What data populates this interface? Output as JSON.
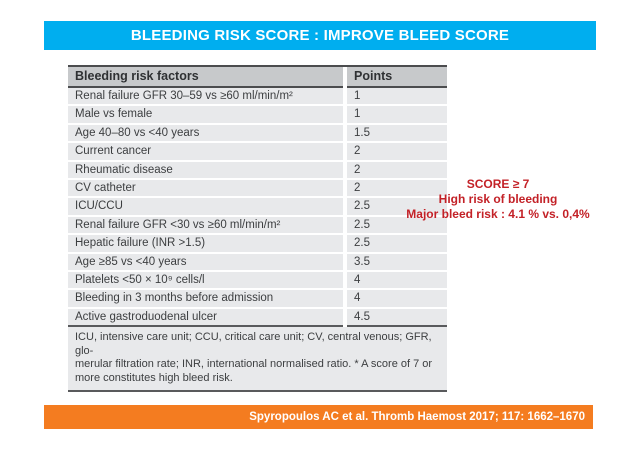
{
  "title": {
    "text": "BLEEDING RISK SCORE : IMPROVE BLEED SCORE"
  },
  "colors": {
    "accent-cyan": "#00AEEF",
    "accent-orange": "#F47C20",
    "accent-red": "#C32127",
    "table-header-bg": "#C7C9CB",
    "table-row-bg": "#E8E9EB"
  },
  "table": {
    "headers": [
      "Bleeding risk factors",
      "Points"
    ],
    "rows": [
      {
        "factor": "Renal failure GFR 30–59 vs ≥60 ml/min/m²",
        "points": "1"
      },
      {
        "factor": "Male vs female",
        "points": "1"
      },
      {
        "factor": "Age 40–80 vs <40 years",
        "points": "1.5"
      },
      {
        "factor": "Current cancer",
        "points": "2"
      },
      {
        "factor": "Rheumatic disease",
        "points": "2"
      },
      {
        "factor": "CV catheter",
        "points": "2"
      },
      {
        "factor": "ICU/CCU",
        "points": "2.5"
      },
      {
        "factor": "Renal failure GFR <30 vs ≥60 ml/min/m²",
        "points": "2.5"
      },
      {
        "factor": "Hepatic failure (INR >1.5)",
        "points": "2.5"
      },
      {
        "factor": "Age ≥85 vs <40 years",
        "points": "3.5"
      },
      {
        "factor": "Platelets <50 × 10⁹ cells/l",
        "points": "4"
      },
      {
        "factor": "Bleeding in 3 months before admission",
        "points": "4"
      },
      {
        "factor": "Active gastroduodenal ulcer",
        "points": "4.5"
      }
    ],
    "footnote_lines": [
      "ICU, intensive care unit; CCU, critical care unit; CV, central venous; GFR, glo-",
      "merular filtration rate; INR, international normalised ratio. * A score of 7 or",
      "more constitutes high bleed risk."
    ]
  },
  "annotation": {
    "line1": "SCORE ≥ 7",
    "line2": "High risk of bleeding",
    "line3": "Major bleed risk : 4.1 % vs. 0,4%"
  },
  "citation": {
    "text": "Spyropoulos AC et al. Thromb Haemost 2017; 117: 1662–1670"
  }
}
